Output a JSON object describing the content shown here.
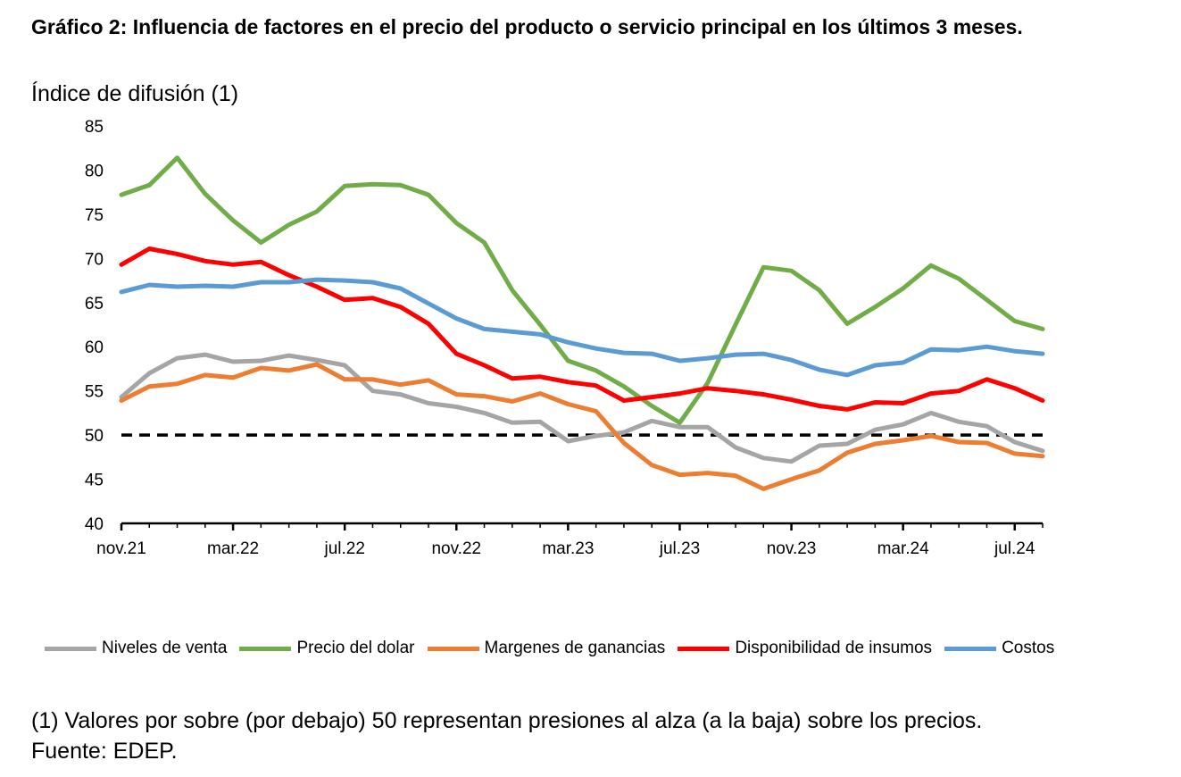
{
  "title": "Gráfico 2: Influencia de factores en el precio del producto o servicio principal en los últimos 3 meses.",
  "subtitle": "Índice de difusión (1)",
  "note": "(1) Valores por sobre (por debajo) 50 representan presiones al alza (a la baja) sobre los precios.",
  "source": "Fuente: EDEP.",
  "chart_data": {
    "type": "line",
    "ylim": [
      40,
      85
    ],
    "yticks": [
      40,
      45,
      50,
      55,
      60,
      65,
      70,
      75,
      80,
      85
    ],
    "grid": false,
    "legend_position": "bottom",
    "reference_line": {
      "y": 50,
      "style": "dashed",
      "color": "#000000"
    },
    "x_tick_labels": [
      "nov.21",
      "mar.22",
      "jul.22",
      "nov.22",
      "mar.23",
      "jul.23",
      "nov.23",
      "mar.24",
      "jul.24"
    ],
    "x_tick_indices": [
      0,
      4,
      8,
      12,
      16,
      20,
      24,
      28,
      32
    ],
    "n_points": 34,
    "series": [
      {
        "name": "Niveles de venta",
        "color": "#a5a5a5",
        "values": [
          54.3,
          57.0,
          58.7,
          59.1,
          58.3,
          58.4,
          59.0,
          58.5,
          57.9,
          55.0,
          54.6,
          53.6,
          53.2,
          52.5,
          51.4,
          51.5,
          49.3,
          49.9,
          50.3,
          51.6,
          50.9,
          50.9,
          48.6,
          47.4,
          47.0,
          48.8,
          49.0,
          50.6,
          51.2,
          52.5,
          51.5,
          51.0,
          49.2,
          48.2
        ]
      },
      {
        "name": "Precio del dolar",
        "color": "#70ad47",
        "values": [
          77.2,
          78.3,
          81.4,
          77.3,
          74.3,
          71.8,
          73.8,
          75.3,
          78.2,
          78.4,
          78.3,
          77.2,
          74.0,
          71.8,
          66.4,
          62.5,
          58.4,
          57.3,
          55.5,
          53.3,
          51.4,
          55.9,
          62.5,
          69.0,
          68.6,
          66.4,
          62.6,
          64.5,
          66.6,
          69.2,
          67.7,
          65.3,
          62.9,
          62.0
        ]
      },
      {
        "name": "Margenes de ganancias",
        "color": "#ed7d31",
        "values": [
          53.9,
          55.5,
          55.8,
          56.8,
          56.5,
          57.6,
          57.3,
          58.0,
          56.3,
          56.3,
          55.7,
          56.2,
          54.6,
          54.4,
          53.8,
          54.7,
          53.5,
          52.7,
          49.1,
          46.6,
          45.5,
          45.7,
          45.4,
          43.9,
          45.0,
          46.0,
          48.0,
          49.0,
          49.4,
          49.9,
          49.2,
          49.1,
          47.9,
          47.6
        ]
      },
      {
        "name": "Disponibilidad de insumos",
        "color": "#ff0000",
        "values": [
          69.3,
          71.1,
          70.5,
          69.7,
          69.3,
          69.6,
          68.1,
          66.8,
          65.3,
          65.5,
          64.5,
          62.6,
          59.2,
          57.9,
          56.4,
          56.6,
          56.0,
          55.6,
          53.9,
          54.3,
          54.7,
          55.3,
          55.0,
          54.6,
          54.0,
          53.3,
          52.9,
          53.7,
          53.6,
          54.7,
          55.0,
          56.3,
          55.3,
          53.9
        ]
      },
      {
        "name": "Costos",
        "color": "#5b9bd5",
        "values": [
          66.2,
          67.0,
          66.8,
          66.9,
          66.8,
          67.3,
          67.3,
          67.6,
          67.5,
          67.3,
          66.6,
          64.9,
          63.2,
          62.0,
          61.7,
          61.4,
          60.5,
          59.8,
          59.3,
          59.2,
          58.4,
          58.7,
          59.1,
          59.2,
          58.5,
          57.4,
          56.8,
          57.9,
          58.2,
          59.7,
          59.6,
          60.0,
          59.5,
          59.2
        ]
      }
    ]
  }
}
